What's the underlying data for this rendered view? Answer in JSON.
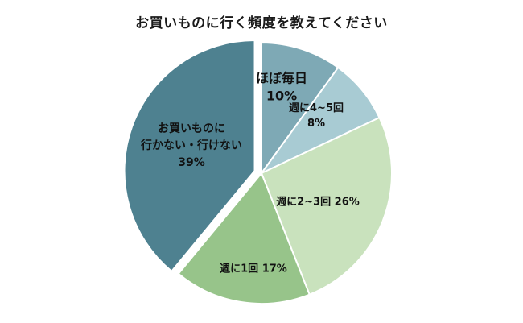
{
  "chart_data": {
    "type": "pie",
    "title": "お買いものに行く頻度を教えてください",
    "start": "12 o'clock",
    "direction": "clockwise",
    "slices": [
      {
        "label_lines": [
          "ほぼ毎日",
          "10%"
        ],
        "value": 10,
        "color": "#7ea9b5",
        "exploded": false
      },
      {
        "label_lines": [
          "週に4~5回",
          "8%"
        ],
        "value": 8,
        "color": "#a8cbd3",
        "exploded": false
      },
      {
        "label_lines": [
          "週に2~3回 26%"
        ],
        "value": 26,
        "color": "#c9e2bd",
        "exploded": false
      },
      {
        "label_lines": [
          "週に1回 17%"
        ],
        "value": 17,
        "color": "#97c48a",
        "exploded": false
      },
      {
        "label_lines": [
          "お買いものに",
          "行かない・行けない",
          "39%"
        ],
        "value": 39,
        "color": "#4e8190",
        "exploded": true
      }
    ]
  }
}
